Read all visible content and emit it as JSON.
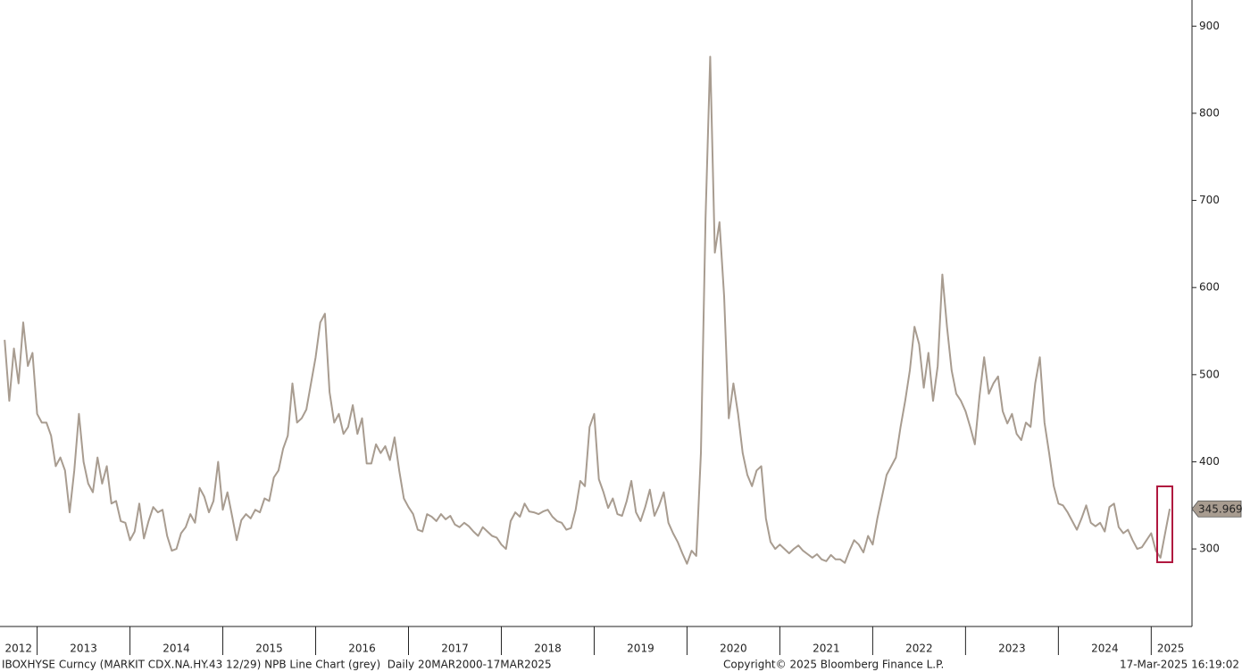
{
  "chart_data": {
    "type": "line",
    "color": "#a89c90",
    "xlim": [
      2012.6,
      2025.42
    ],
    "xticks": [
      2012,
      2013,
      2014,
      2015,
      2016,
      2017,
      2018,
      2019,
      2020,
      2021,
      2022,
      2023,
      2024,
      2025
    ],
    "ylim": [
      211,
      930
    ],
    "yticks": [
      300,
      400,
      500,
      600,
      700,
      800,
      900
    ],
    "x": [
      2012.65,
      2012.7,
      2012.75,
      2012.8,
      2012.85,
      2012.9,
      2012.95,
      2013,
      2013.05,
      2013.1,
      2013.15,
      2013.2,
      2013.25,
      2013.3,
      2013.35,
      2013.4,
      2013.45,
      2013.5,
      2013.55,
      2013.6,
      2013.65,
      2013.7,
      2013.75,
      2013.8,
      2013.85,
      2013.9,
      2013.95,
      2014,
      2014.05,
      2014.1,
      2014.15,
      2014.2,
      2014.25,
      2014.3,
      2014.35,
      2014.4,
      2014.45,
      2014.5,
      2014.55,
      2014.6,
      2014.65,
      2014.7,
      2014.75,
      2014.8,
      2014.85,
      2014.9,
      2014.95,
      2015,
      2015.05,
      2015.1,
      2015.15,
      2015.2,
      2015.25,
      2015.3,
      2015.35,
      2015.4,
      2015.45,
      2015.5,
      2015.55,
      2015.6,
      2015.65,
      2015.7,
      2015.75,
      2015.8,
      2015.85,
      2015.9,
      2015.95,
      2016,
      2016.05,
      2016.1,
      2016.15,
      2016.2,
      2016.25,
      2016.3,
      2016.35,
      2016.4,
      2016.45,
      2016.5,
      2016.55,
      2016.6,
      2016.65,
      2016.7,
      2016.75,
      2016.8,
      2016.85,
      2016.9,
      2016.95,
      2017,
      2017.05,
      2017.1,
      2017.15,
      2017.2,
      2017.25,
      2017.3,
      2017.35,
      2017.4,
      2017.45,
      2017.5,
      2017.55,
      2017.6,
      2017.65,
      2017.7,
      2017.75,
      2017.8,
      2017.85,
      2017.9,
      2017.95,
      2018,
      2018.05,
      2018.1,
      2018.15,
      2018.2,
      2018.25,
      2018.3,
      2018.35,
      2018.4,
      2018.45,
      2018.5,
      2018.55,
      2018.6,
      2018.65,
      2018.7,
      2018.75,
      2018.8,
      2018.85,
      2018.9,
      2018.95,
      2019,
      2019.05,
      2019.1,
      2019.15,
      2019.2,
      2019.25,
      2019.3,
      2019.35,
      2019.4,
      2019.45,
      2019.5,
      2019.55,
      2019.6,
      2019.65,
      2019.7,
      2019.75,
      2019.8,
      2019.85,
      2019.9,
      2019.95,
      2020,
      2020.05,
      2020.1,
      2020.15,
      2020.2,
      2020.25,
      2020.3,
      2020.35,
      2020.4,
      2020.45,
      2020.5,
      2020.55,
      2020.6,
      2020.65,
      2020.7,
      2020.75,
      2020.8,
      2020.85,
      2020.9,
      2020.95,
      2021,
      2021.05,
      2021.1,
      2021.15,
      2021.2,
      2021.25,
      2021.3,
      2021.35,
      2021.4,
      2021.45,
      2021.5,
      2021.55,
      2021.6,
      2021.65,
      2021.7,
      2021.75,
      2021.8,
      2021.85,
      2021.9,
      2021.95,
      2022,
      2022.05,
      2022.1,
      2022.15,
      2022.2,
      2022.25,
      2022.3,
      2022.35,
      2022.4,
      2022.45,
      2022.5,
      2022.55,
      2022.6,
      2022.65,
      2022.7,
      2022.75,
      2022.8,
      2022.85,
      2022.9,
      2022.95,
      2023,
      2023.05,
      2023.1,
      2023.15,
      2023.2,
      2023.25,
      2023.3,
      2023.35,
      2023.4,
      2023.45,
      2023.5,
      2023.55,
      2023.6,
      2023.65,
      2023.7,
      2023.75,
      2023.8,
      2023.85,
      2023.9,
      2023.95,
      2024,
      2024.05,
      2024.1,
      2024.15,
      2024.2,
      2024.25,
      2024.3,
      2024.35,
      2024.4,
      2024.45,
      2024.5,
      2024.55,
      2024.6,
      2024.65,
      2024.7,
      2024.75,
      2024.8,
      2024.85,
      2024.9,
      2024.95,
      2025,
      2025.05,
      2025.1,
      2025.15,
      2025.2
    ],
    "values": [
      540,
      470,
      530,
      490,
      560,
      510,
      525,
      455,
      445,
      445,
      430,
      395,
      405,
      390,
      342,
      390,
      455,
      400,
      375,
      365,
      405,
      375,
      395,
      352,
      355,
      332,
      330,
      310,
      320,
      352,
      312,
      332,
      348,
      342,
      345,
      315,
      298,
      300,
      318,
      325,
      340,
      330,
      370,
      360,
      342,
      355,
      400,
      345,
      365,
      338,
      310,
      333,
      340,
      335,
      345,
      342,
      358,
      355,
      382,
      390,
      415,
      430,
      490,
      445,
      450,
      460,
      490,
      520,
      560,
      570,
      480,
      445,
      455,
      432,
      440,
      465,
      432,
      450,
      398,
      398,
      420,
      410,
      418,
      402,
      428,
      390,
      358,
      348,
      340,
      322,
      320,
      340,
      337,
      332,
      340,
      334,
      338,
      328,
      325,
      330,
      326,
      320,
      315,
      325,
      320,
      315,
      313,
      305,
      300,
      332,
      342,
      337,
      352,
      343,
      342,
      340,
      343,
      345,
      337,
      332,
      330,
      322,
      324,
      345,
      378,
      372,
      440,
      455,
      380,
      365,
      347,
      358,
      340,
      338,
      355,
      378,
      342,
      332,
      348,
      368,
      338,
      350,
      365,
      330,
      318,
      308,
      295,
      283,
      298,
      292,
      410,
      680,
      865,
      640,
      675,
      590,
      450,
      490,
      455,
      410,
      385,
      372,
      390,
      395,
      335,
      308,
      300,
      305,
      300,
      295,
      300,
      304,
      298,
      294,
      290,
      294,
      288,
      286,
      293,
      288,
      288,
      284,
      298,
      310,
      305,
      296,
      315,
      305,
      335,
      360,
      385,
      395,
      405,
      440,
      470,
      505,
      555,
      535,
      485,
      525,
      470,
      510,
      615,
      555,
      505,
      478,
      470,
      458,
      440,
      420,
      475,
      520,
      478,
      490,
      498,
      458,
      444,
      455,
      432,
      425,
      445,
      440,
      490,
      520,
      445,
      410,
      372,
      352,
      350,
      342,
      332,
      322,
      335,
      350,
      330,
      326,
      330,
      320,
      348,
      352,
      325,
      318,
      322,
      310,
      300,
      302,
      310,
      318,
      298,
      290,
      318,
      345.969
    ]
  },
  "footer": {
    "source": "IBOXHYSE Curncy (MARKIT CDX.NA.HY.43 12/29) NPB Line Chart (grey)  Daily 20MAR2000-17MAR2025",
    "copyright": "Copyright© 2025 Bloomberg Finance L.P.",
    "timestamp": "17-Mar-2025 16:19:02"
  }
}
